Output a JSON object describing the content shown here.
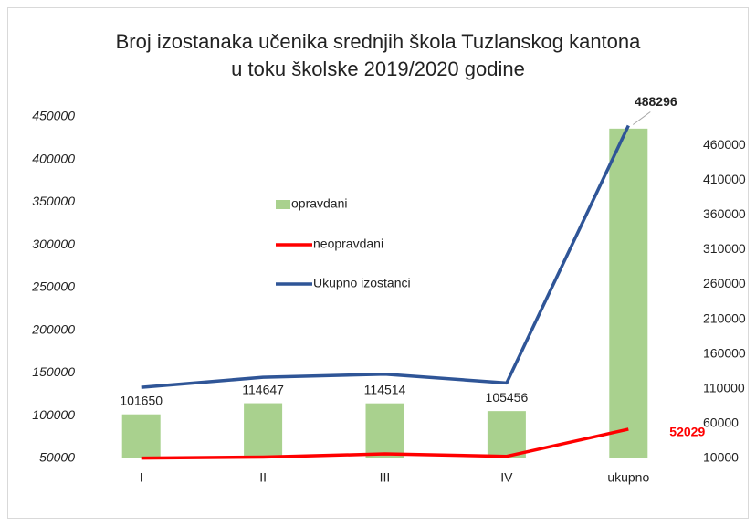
{
  "chart_data": {
    "type": "bar",
    "title": [
      "Broj izostanaka učenika srednjih škola Tuzlanskog kantona",
      "u toku školske 2019/2020 godine"
    ],
    "categories": [
      "I",
      "II",
      "III",
      "IV",
      "ukupno"
    ],
    "series": [
      {
        "name": "opravdani",
        "type": "bar",
        "color": "#a9d18e",
        "values": [
          101650,
          114647,
          114514,
          105456,
          436267
        ],
        "value_labels": [
          "101650",
          "114647",
          "114514",
          "105456",
          null
        ]
      },
      {
        "name": "neopravdani",
        "type": "line",
        "axis": "y2",
        "color": "#ff0000",
        "values": [
          10500,
          12000,
          16529,
          13000,
          52029
        ],
        "value_labels": [
          null,
          null,
          null,
          null,
          "52029"
        ]
      },
      {
        "name": "Ukupno izostanci",
        "type": "line",
        "axis": "y2",
        "color": "#2f5597",
        "values": [
          112150,
          126647,
          131043,
          118456,
          488296
        ],
        "value_labels": [
          null,
          null,
          null,
          null,
          "488296"
        ]
      }
    ],
    "ylim": [
      50000,
      450000
    ],
    "yticks": [
      50000,
      100000,
      150000,
      200000,
      250000,
      300000,
      350000,
      400000,
      450000
    ],
    "y2lim": [
      10000,
      500800
    ],
    "y2ticks": [
      10000,
      60000,
      110000,
      160000,
      210000,
      260000,
      310000,
      360000,
      410000,
      460000
    ],
    "grid": false,
    "legend": "center"
  }
}
